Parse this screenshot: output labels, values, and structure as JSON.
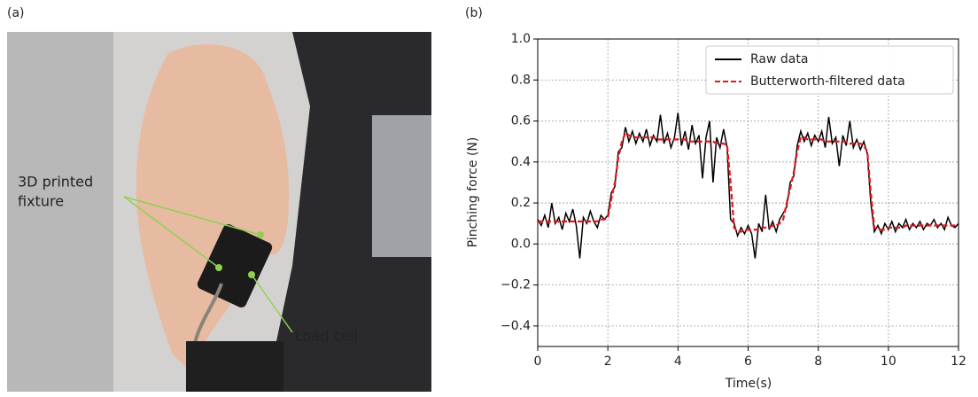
{
  "photo": {
    "label": "(a)",
    "annotations": {
      "fixture": [
        "3D printed",
        "fixture"
      ],
      "load_cell": "Load cell"
    }
  },
  "chart_data": {
    "type": "line",
    "panel_label": "(b)",
    "x_label": "Time(s)",
    "y_label": "Pinching force (N)",
    "x": [
      0,
      0.1,
      0.2,
      0.3,
      0.4,
      0.5,
      0.6,
      0.7,
      0.8,
      0.9,
      1,
      1.1,
      1.2,
      1.3,
      1.4,
      1.5,
      1.6,
      1.7,
      1.8,
      1.9,
      2,
      2.1,
      2.2,
      2.3,
      2.4,
      2.5,
      2.6,
      2.7,
      2.8,
      2.9,
      3,
      3.1,
      3.2,
      3.3,
      3.4,
      3.5,
      3.6,
      3.7,
      3.8,
      3.9,
      4,
      4.1,
      4.2,
      4.3,
      4.4,
      4.5,
      4.6,
      4.7,
      4.8,
      4.9,
      5,
      5.1,
      5.2,
      5.3,
      5.4,
      5.5,
      5.6,
      5.7,
      5.8,
      5.9,
      6,
      6.1,
      6.2,
      6.3,
      6.4,
      6.5,
      6.6,
      6.7,
      6.8,
      6.9,
      7,
      7.1,
      7.2,
      7.3,
      7.4,
      7.5,
      7.6,
      7.7,
      7.8,
      7.9,
      8,
      8.1,
      8.2,
      8.3,
      8.4,
      8.5,
      8.6,
      8.7,
      8.8,
      8.9,
      9,
      9.1,
      9.2,
      9.3,
      9.4,
      9.5,
      9.6,
      9.7,
      9.8,
      9.9,
      10,
      10.1,
      10.2,
      10.3,
      10.4,
      10.5,
      10.6,
      10.7,
      10.8,
      10.9,
      11,
      11.1,
      11.2,
      11.3,
      11.4,
      11.5,
      11.6,
      11.7,
      11.8,
      11.9,
      12
    ],
    "series": [
      {
        "name": "Raw data",
        "color": "#000000",
        "linestyle": "solid",
        "values": [
          0.12,
          0.09,
          0.14,
          0.08,
          0.2,
          0.1,
          0.13,
          0.07,
          0.15,
          0.11,
          0.17,
          0.09,
          -0.07,
          0.13,
          0.1,
          0.16,
          0.11,
          0.08,
          0.14,
          0.12,
          0.14,
          0.25,
          0.28,
          0.45,
          0.47,
          0.57,
          0.5,
          0.55,
          0.49,
          0.54,
          0.5,
          0.56,
          0.48,
          0.53,
          0.5,
          0.63,
          0.49,
          0.54,
          0.47,
          0.52,
          0.64,
          0.48,
          0.55,
          0.46,
          0.58,
          0.49,
          0.53,
          0.32,
          0.52,
          0.6,
          0.3,
          0.52,
          0.47,
          0.56,
          0.47,
          0.12,
          0.1,
          0.04,
          0.08,
          0.05,
          0.09,
          0.05,
          -0.07,
          0.1,
          0.06,
          0.24,
          0.07,
          0.11,
          0.06,
          0.12,
          0.15,
          0.18,
          0.3,
          0.33,
          0.48,
          0.55,
          0.5,
          0.54,
          0.48,
          0.53,
          0.5,
          0.55,
          0.47,
          0.62,
          0.49,
          0.52,
          0.38,
          0.53,
          0.48,
          0.6,
          0.47,
          0.51,
          0.46,
          0.5,
          0.44,
          0.2,
          0.06,
          0.09,
          0.05,
          0.1,
          0.07,
          0.11,
          0.06,
          0.1,
          0.08,
          0.12,
          0.07,
          0.1,
          0.08,
          0.11,
          0.07,
          0.1,
          0.09,
          0.12,
          0.08,
          0.1,
          0.07,
          0.13,
          0.09,
          0.08,
          0.1
        ]
      },
      {
        "name": "Butterworth-filtered data",
        "color": "#e8141c",
        "linestyle": "dashed",
        "values": [
          0.11,
          0.11,
          0.11,
          0.11,
          0.11,
          0.11,
          0.11,
          0.11,
          0.11,
          0.11,
          0.11,
          0.11,
          0.11,
          0.11,
          0.11,
          0.11,
          0.11,
          0.11,
          0.12,
          0.12,
          0.13,
          0.22,
          0.3,
          0.42,
          0.5,
          0.54,
          0.53,
          0.52,
          0.52,
          0.52,
          0.52,
          0.52,
          0.52,
          0.52,
          0.51,
          0.51,
          0.51,
          0.51,
          0.51,
          0.51,
          0.51,
          0.51,
          0.51,
          0.5,
          0.5,
          0.5,
          0.5,
          0.5,
          0.5,
          0.5,
          0.5,
          0.49,
          0.49,
          0.49,
          0.48,
          0.3,
          0.08,
          0.06,
          0.06,
          0.07,
          0.07,
          0.07,
          0.07,
          0.07,
          0.08,
          0.08,
          0.08,
          0.09,
          0.09,
          0.1,
          0.12,
          0.2,
          0.27,
          0.35,
          0.45,
          0.52,
          0.52,
          0.51,
          0.51,
          0.51,
          0.51,
          0.51,
          0.5,
          0.5,
          0.5,
          0.5,
          0.5,
          0.5,
          0.5,
          0.49,
          0.49,
          0.49,
          0.49,
          0.48,
          0.45,
          0.25,
          0.08,
          0.07,
          0.07,
          0.07,
          0.08,
          0.08,
          0.08,
          0.08,
          0.08,
          0.09,
          0.09,
          0.09,
          0.09,
          0.09,
          0.09,
          0.09,
          0.09,
          0.09,
          0.09,
          0.09,
          0.09,
          0.09,
          0.09,
          0.09,
          0.09
        ]
      }
    ],
    "xlim": [
      0,
      12
    ],
    "xticks": [
      0,
      2,
      4,
      6,
      8,
      10,
      12
    ],
    "ylim": [
      -0.5,
      1.0
    ],
    "yticks": [
      {
        "value": -0.4,
        "label": "−0.4"
      },
      {
        "value": -0.2,
        "label": "−0.2"
      },
      {
        "value": 0,
        "label": "0.0"
      },
      0.2,
      0.4,
      0.6,
      0.8,
      {
        "value": 1.0,
        "label": "1.0"
      }
    ],
    "grid": true,
    "legend": "upper right"
  }
}
